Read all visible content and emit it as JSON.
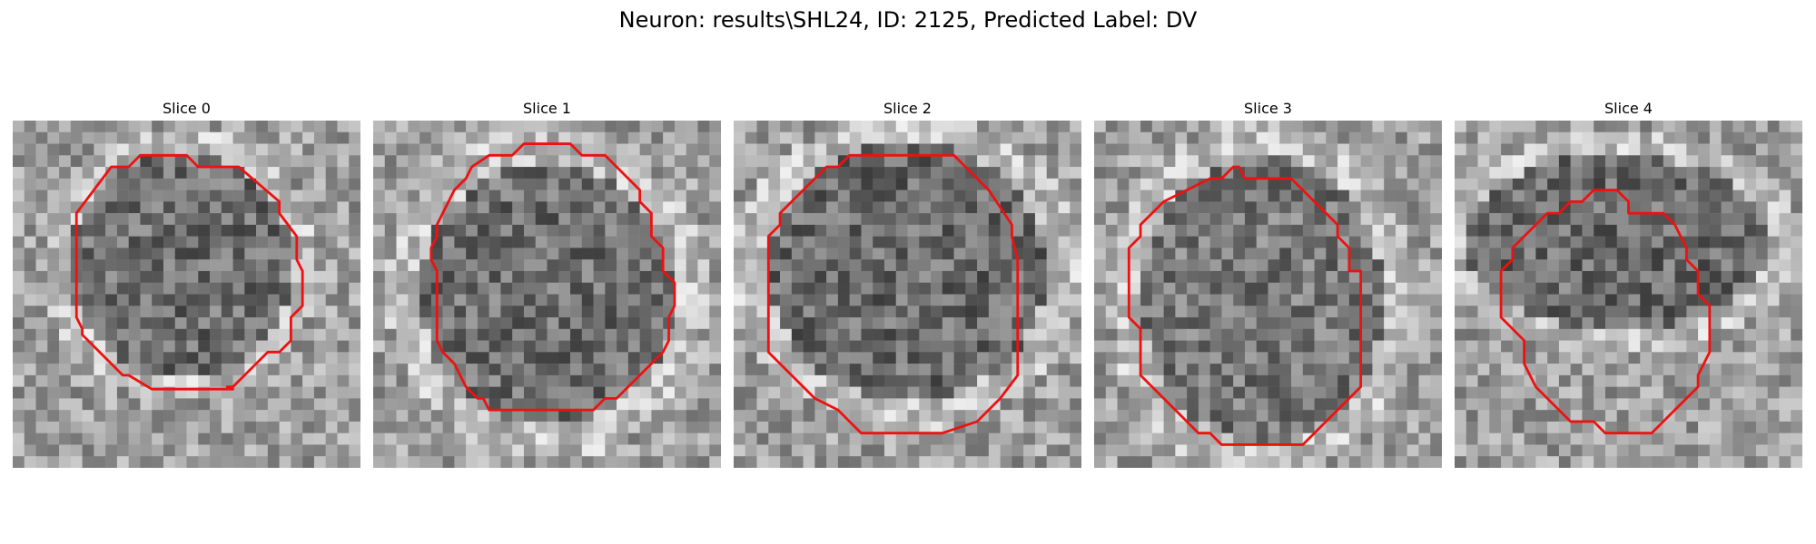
{
  "figure": {
    "title": "Neuron: results\\SHL24, ID: 2125, Predicted Label: DV"
  },
  "slices": [
    {
      "title": "Slice 0"
    },
    {
      "title": "Slice 1"
    },
    {
      "title": "Slice 2"
    },
    {
      "title": "Slice 3"
    },
    {
      "title": "Slice 4"
    }
  ],
  "colors": {
    "contour": "#ee1111",
    "background": "#ffffff"
  },
  "image_description_hint": "grayscale pixelated microscopy crops with red cell outline"
}
